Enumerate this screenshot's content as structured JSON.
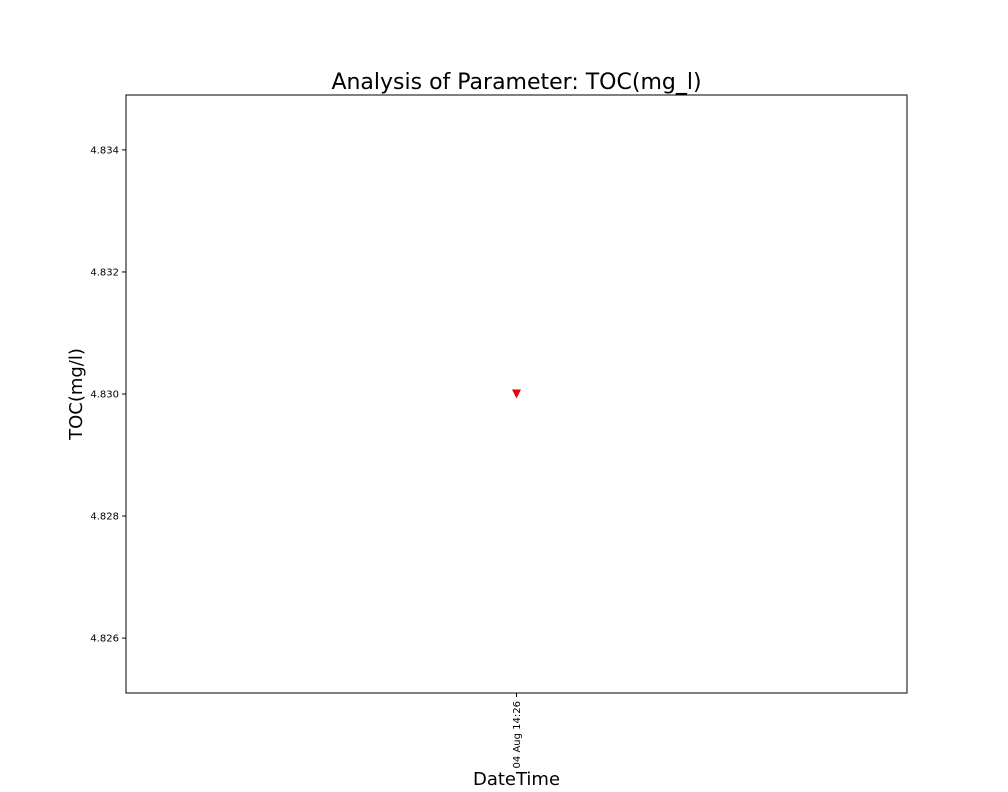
{
  "chart_data": {
    "type": "scatter",
    "title": "Analysis of Parameter: TOC(mg_l)",
    "xlabel": "DateTime",
    "ylabel": "TOC(mg/l)",
    "ylim": [
      4.8251,
      4.8349
    ],
    "y_ticks": [
      "4.826",
      "4.828",
      "4.830",
      "4.832",
      "4.834"
    ],
    "x_ticks": [
      "04 Aug 14:26"
    ],
    "grid": false,
    "marker": "triangle-down",
    "marker_color": "#e8000b",
    "series": [
      {
        "points": [
          {
            "x": "04 Aug 14:26",
            "y": 4.83
          }
        ]
      }
    ]
  }
}
